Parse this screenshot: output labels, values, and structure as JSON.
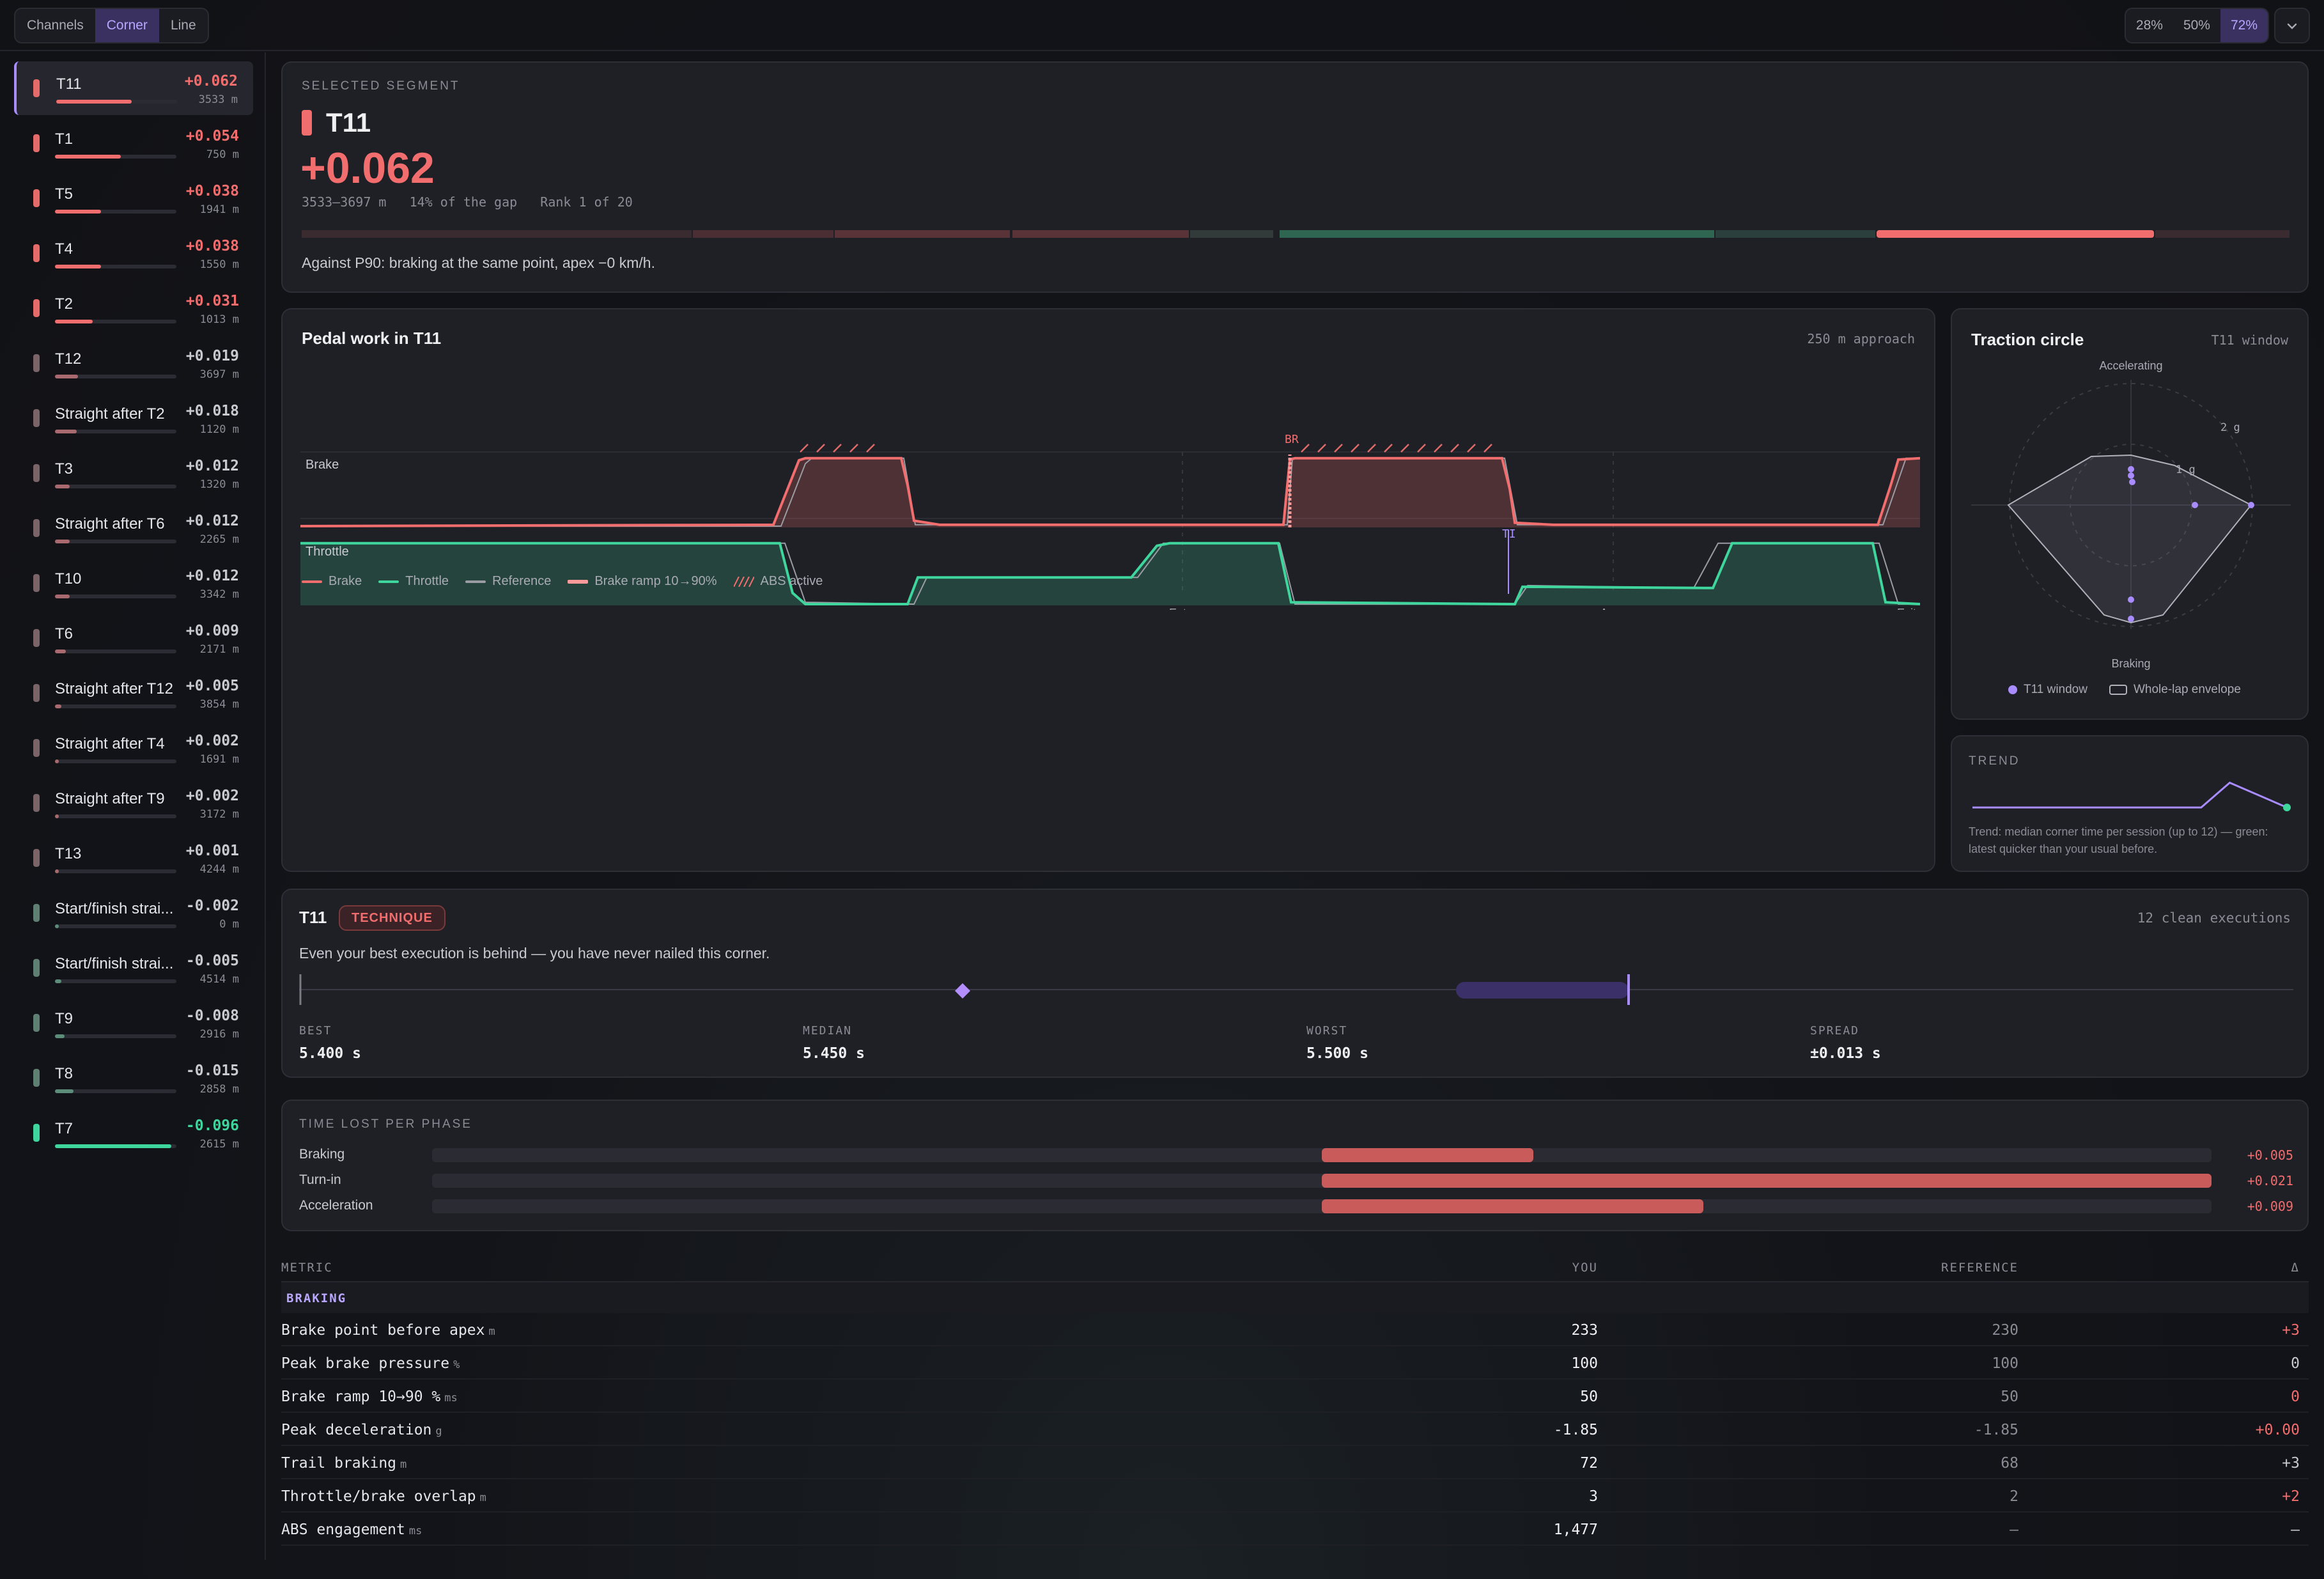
{
  "toolbar": {
    "view_modes": [
      {
        "label": "Channels",
        "active": false
      },
      {
        "label": "Corner",
        "active": true
      },
      {
        "label": "Line",
        "active": false
      }
    ],
    "zoom_levels": [
      {
        "label": "28%",
        "active": false
      },
      {
        "label": "50%",
        "active": false
      },
      {
        "label": "72%",
        "active": true
      }
    ],
    "menu_icon": "chevron-down-icon"
  },
  "colors": {
    "loss": "#f26d6d",
    "gain": "#3fd69e",
    "accent": "#a98cff",
    "reference": "#9a9ba3"
  },
  "corners": [
    {
      "name": "T11",
      "delta": "+0.062",
      "dist": "3533 m",
      "value": 0.062,
      "active": true
    },
    {
      "name": "T1",
      "delta": "+0.054",
      "dist": "750 m",
      "value": 0.054
    },
    {
      "name": "T5",
      "delta": "+0.038",
      "dist": "1941 m",
      "value": 0.038
    },
    {
      "name": "T4",
      "delta": "+0.038",
      "dist": "1550 m",
      "value": 0.038
    },
    {
      "name": "T2",
      "delta": "+0.031",
      "dist": "1013 m",
      "value": 0.031
    },
    {
      "name": "T12",
      "delta": "+0.019",
      "dist": "3697 m",
      "value": 0.019
    },
    {
      "name": "Straight after T2",
      "delta": "+0.018",
      "dist": "1120 m",
      "value": 0.018
    },
    {
      "name": "T3",
      "delta": "+0.012",
      "dist": "1320 m",
      "value": 0.012
    },
    {
      "name": "Straight after T6",
      "delta": "+0.012",
      "dist": "2265 m",
      "value": 0.012
    },
    {
      "name": "T10",
      "delta": "+0.012",
      "dist": "3342 m",
      "value": 0.012
    },
    {
      "name": "T6",
      "delta": "+0.009",
      "dist": "2171 m",
      "value": 0.009
    },
    {
      "name": "Straight after T12",
      "delta": "+0.005",
      "dist": "3854 m",
      "value": 0.005
    },
    {
      "name": "Straight after T4",
      "delta": "+0.002",
      "dist": "1691 m",
      "value": 0.002
    },
    {
      "name": "Straight after T9",
      "delta": "+0.002",
      "dist": "3172 m",
      "value": 0.002
    },
    {
      "name": "T13",
      "delta": "+0.001",
      "dist": "4244 m",
      "value": 0.001
    },
    {
      "name": "Start/finish strai...",
      "delta": "-0.002",
      "dist": "0 m",
      "value": -0.002
    },
    {
      "name": "Start/finish strai...",
      "delta": "-0.005",
      "dist": "4514 m",
      "value": -0.005
    },
    {
      "name": "T9",
      "delta": "-0.008",
      "dist": "2916 m",
      "value": -0.008
    },
    {
      "name": "T8",
      "delta": "-0.015",
      "dist": "2858 m",
      "value": -0.015
    },
    {
      "name": "T7",
      "delta": "-0.096",
      "dist": "2615 m",
      "value": -0.096
    }
  ],
  "segment": {
    "heading": "SELECTED SEGMENT",
    "name": "T11",
    "delta": "+0.062",
    "range": "3533–3697 m",
    "gap_share": "14% of the gap",
    "rank": "Rank 1 of 20",
    "note": "Against P90: braking at the same point, apex −0 km/h."
  },
  "pedal": {
    "title": "Pedal work in T11",
    "approach": "250 m approach",
    "brake_label": "Brake",
    "throttle_label": "Throttle",
    "br_marker": "BR",
    "ti_marker": "TI",
    "phase_labels": [
      "Entry",
      "Apex",
      "Exit"
    ],
    "legend": [
      {
        "label": "Brake",
        "color": "#f26d6d"
      },
      {
        "label": "Throttle",
        "color": "#3fd69e"
      },
      {
        "label": "Reference",
        "color": "#9a9ba3"
      },
      {
        "label": "Brake ramp 10→90%",
        "color": "#ff9a9a"
      },
      {
        "label": "ABS active",
        "color": "#f26d6d"
      }
    ]
  },
  "traction": {
    "title": "Traction circle",
    "window": "T11 window",
    "top_label": "Accelerating",
    "bottom_label": "Braking",
    "ring_labels": [
      "2 g",
      "1 g"
    ],
    "legend_window": "T11 window",
    "legend_envelope": "Whole-lap envelope"
  },
  "trend": {
    "heading": "TREND",
    "values": [
      1,
      1,
      1,
      1,
      1,
      1,
      1,
      1,
      1,
      1.6,
      1.3,
      1
    ],
    "note": "Trend: median corner time per session (up to 12) — green: latest quicker than your usual before."
  },
  "technique": {
    "corner": "T11",
    "badge": "TECHNIQUE",
    "executions": "12 clean executions",
    "description": "Even your best execution is behind — you have never nailed this corner.",
    "stats": [
      {
        "label": "BEST",
        "value": "5.400 s"
      },
      {
        "label": "MEDIAN",
        "value": "5.450 s"
      },
      {
        "label": "WORST",
        "value": "5.500 s"
      },
      {
        "label": "SPREAD",
        "value": "±0.013 s"
      }
    ]
  },
  "phases": {
    "heading": "TIME LOST PER PHASE",
    "rows": [
      {
        "label": "Braking",
        "value": "+0.005",
        "amount": 0.005
      },
      {
        "label": "Turn-in",
        "value": "+0.021",
        "amount": 0.021
      },
      {
        "label": "Acceleration",
        "value": "+0.009",
        "amount": 0.009
      }
    ]
  },
  "metrics": {
    "columns": {
      "metric": "METRIC",
      "you": "YOU",
      "reference": "REFERENCE",
      "delta": "Δ"
    },
    "group": "BRAKING",
    "rows": [
      {
        "name": "Brake point before apex",
        "unit": "m",
        "you": "233",
        "ref": "230",
        "delta": "+3",
        "tone": "pos"
      },
      {
        "name": "Peak brake pressure",
        "unit": "%",
        "you": "100",
        "ref": "100",
        "delta": "0",
        "tone": "zero"
      },
      {
        "name": "Brake ramp 10→90 %",
        "unit": "ms",
        "you": "50",
        "ref": "50",
        "delta": "0",
        "tone": "pos"
      },
      {
        "name": "Peak deceleration",
        "unit": "g",
        "you": "-1.85",
        "ref": "-1.85",
        "delta": "+0.00",
        "tone": "pos"
      },
      {
        "name": "Trail braking",
        "unit": "m",
        "you": "72",
        "ref": "68",
        "delta": "+3",
        "tone": "zero"
      },
      {
        "name": "Throttle/brake overlap",
        "unit": "m",
        "you": "3",
        "ref": "2",
        "delta": "+2",
        "tone": "pos"
      },
      {
        "name": "ABS engagement",
        "unit": "ms",
        "you": "1,477",
        "ref": "—",
        "delta": "—",
        "tone": "zero"
      }
    ]
  }
}
